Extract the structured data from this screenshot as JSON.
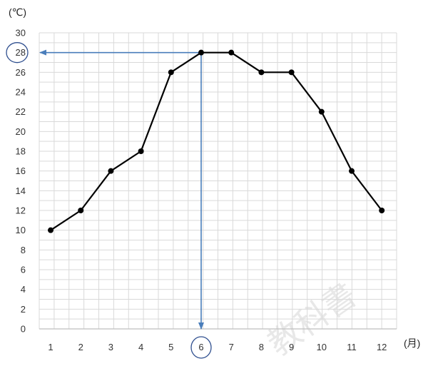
{
  "chart_data": {
    "type": "line",
    "x": [
      "1",
      "2",
      "3",
      "4",
      "5",
      "6",
      "7",
      "8",
      "9",
      "10",
      "11",
      "12"
    ],
    "series": [
      {
        "values": [
          10,
          12,
          16,
          18,
          26,
          28,
          28,
          26,
          26,
          22,
          16,
          12
        ]
      }
    ],
    "y_unit": "(℃)",
    "x_unit": "(月)",
    "ylim": [
      0,
      30
    ],
    "y_ticks": [
      0,
      2,
      4,
      6,
      8,
      10,
      12,
      14,
      16,
      18,
      20,
      22,
      24,
      26,
      28,
      30
    ],
    "grid": true,
    "legend": "none",
    "annotation": {
      "x": "6",
      "y": 28,
      "circled_x_tick": "6",
      "circled_y_tick": "28",
      "arrow_color": "#4a7ebb"
    },
    "colors": {
      "line": "#000000",
      "grid": "#d9d9d9",
      "axis": "#bfbfbf",
      "arrow": "#4a7ebb",
      "circle": "#2f4f8f"
    }
  },
  "watermark": "教科書"
}
